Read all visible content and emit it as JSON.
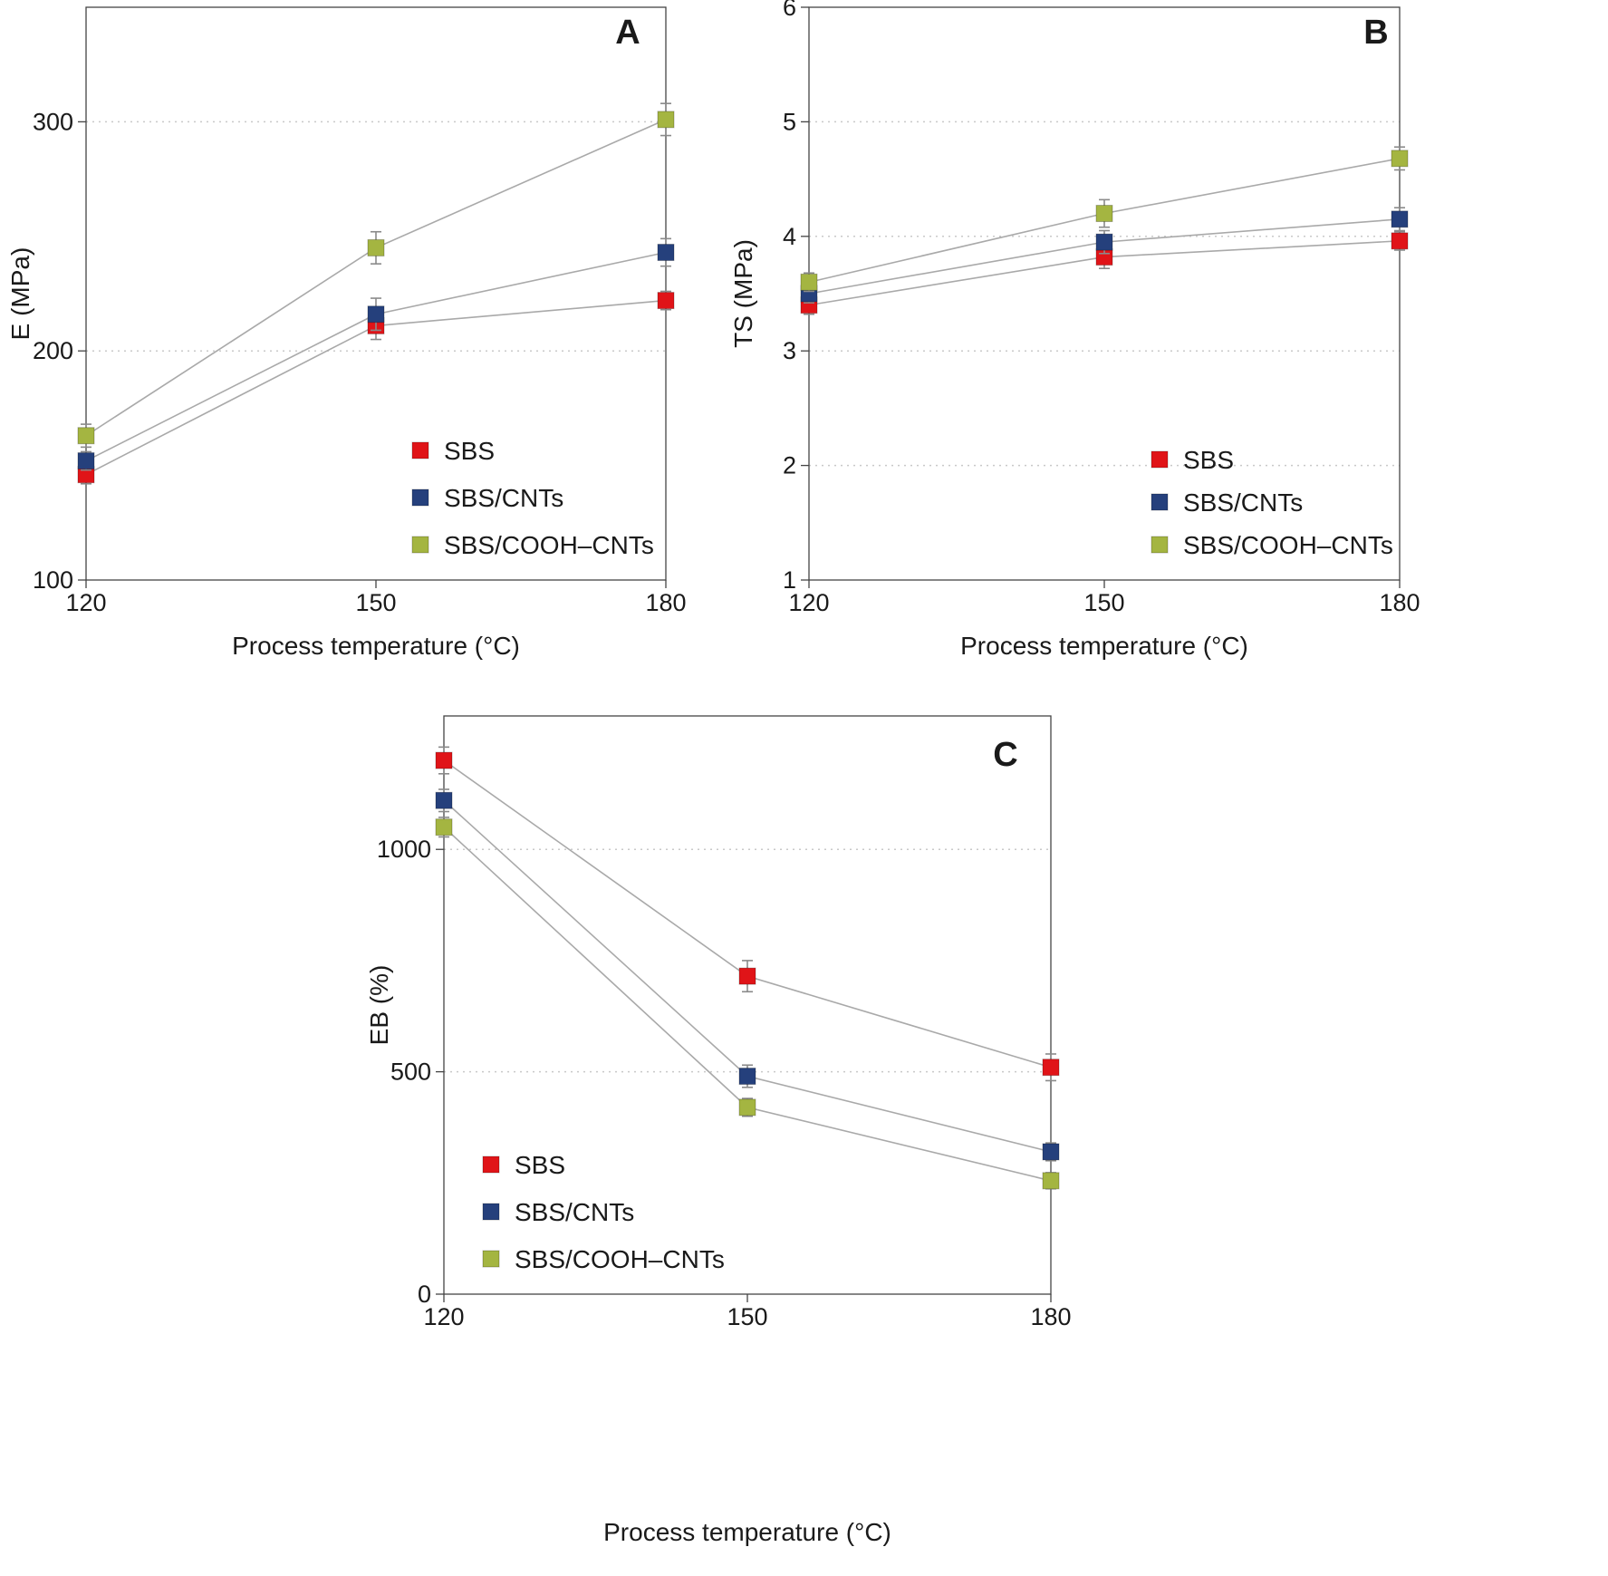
{
  "figure": {
    "background": "#ffffff",
    "line_color": "#a9a9a9",
    "grid_color": "#c9c9c9",
    "axis_color": "#444444",
    "error_color": "#8a8a8a",
    "series_colors": {
      "sbs": "#e01418",
      "sbs_cnts": "#25407c",
      "sbs_cooh_cnts": "#a4b541"
    }
  },
  "chart_data": [
    {
      "type": "line",
      "panel_label": "A",
      "x": [
        120,
        150,
        180
      ],
      "xlabel": "Process temperature (°C)",
      "ylabel": "E (MPa)",
      "ylim": [
        100,
        350
      ],
      "yticks": [
        100,
        200,
        300
      ],
      "grid": "dotted-horizontal",
      "legend_position": "lower-right",
      "series": [
        {
          "name": "SBS",
          "color": "#e01418",
          "values": [
            146,
            211,
            222
          ],
          "errors": [
            4,
            6,
            4
          ]
        },
        {
          "name": "SBS/CNTs",
          "color": "#25407c",
          "values": [
            152,
            216,
            243
          ],
          "errors": [
            4,
            7,
            6
          ]
        },
        {
          "name": "SBS/COOH–CNTs",
          "color": "#a4b541",
          "values": [
            163,
            245,
            301
          ],
          "errors": [
            5,
            7,
            7
          ]
        }
      ]
    },
    {
      "type": "line",
      "panel_label": "B",
      "x": [
        120,
        150,
        180
      ],
      "xlabel": "Process temperature (°C)",
      "ylabel": "TS (MPa)",
      "ylim": [
        1,
        6
      ],
      "yticks": [
        1,
        2,
        3,
        4,
        5,
        6
      ],
      "grid": "dotted-horizontal",
      "legend_position": "lower-right",
      "series": [
        {
          "name": "SBS",
          "color": "#e01418",
          "values": [
            3.4,
            3.82,
            3.96
          ],
          "errors": [
            0.08,
            0.1,
            0.08
          ]
        },
        {
          "name": "SBS/CNTs",
          "color": "#25407c",
          "values": [
            3.5,
            3.95,
            4.15
          ],
          "errors": [
            0.08,
            0.1,
            0.1
          ]
        },
        {
          "name": "SBS/COOH–CNTs",
          "color": "#a4b541",
          "values": [
            3.6,
            4.2,
            4.68
          ],
          "errors": [
            0.08,
            0.12,
            0.1
          ]
        }
      ]
    },
    {
      "type": "line",
      "panel_label": "C",
      "x": [
        120,
        150,
        180
      ],
      "xlabel": "Process temperature (°C)",
      "ylabel": "EB (%)",
      "ylim": [
        0,
        1300
      ],
      "yticks": [
        0,
        500,
        1000
      ],
      "grid": "dotted-horizontal",
      "legend_position": "lower-left",
      "series": [
        {
          "name": "SBS",
          "color": "#e01418",
          "values": [
            1200,
            715,
            510
          ],
          "errors": [
            30,
            35,
            30
          ]
        },
        {
          "name": "SBS/CNTs",
          "color": "#25407c",
          "values": [
            1110,
            490,
            320
          ],
          "errors": [
            25,
            25,
            20
          ]
        },
        {
          "name": "SBS/COOH–CNTs",
          "color": "#a4b541",
          "values": [
            1050,
            420,
            255
          ],
          "errors": [
            22,
            20,
            18
          ]
        }
      ]
    }
  ]
}
